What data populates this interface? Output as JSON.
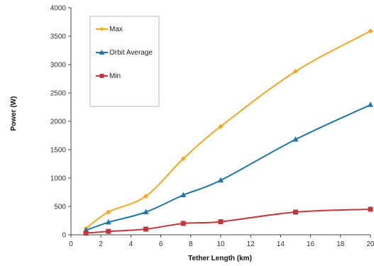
{
  "chart_data": {
    "type": "line",
    "xlabel": "Tether Length (km)",
    "ylabel": "Power (W)",
    "xlim": [
      0,
      20
    ],
    "ylim": [
      0,
      4000
    ],
    "xticks": [
      "0",
      "2",
      "4",
      "6",
      "8",
      "10",
      "12",
      "14",
      "16",
      "18",
      "20"
    ],
    "yticks": [
      "0",
      "500",
      "1000",
      "1500",
      "2000",
      "2500",
      "3000",
      "3500",
      "4000"
    ],
    "grid": false,
    "legend_position": "top-left",
    "series": [
      {
        "name": "Max",
        "color": "#f5a623",
        "marker": "diamond",
        "x": [
          1,
          2.5,
          5,
          7.5,
          10,
          15,
          20
        ],
        "y": [
          110,
          400,
          680,
          1340,
          1910,
          2880,
          3590
        ]
      },
      {
        "name": "Orbit Average",
        "color": "#1f77a8",
        "marker": "triangle",
        "x": [
          1,
          2.5,
          5,
          7.5,
          10,
          15,
          20
        ],
        "y": [
          80,
          220,
          400,
          700,
          960,
          1680,
          2290
        ]
      },
      {
        "name": "Min",
        "color": "#c1373c",
        "marker": "square",
        "x": [
          1,
          2.5,
          5,
          7.5,
          10,
          15,
          20
        ],
        "y": [
          30,
          60,
          100,
          200,
          230,
          400,
          450
        ]
      }
    ]
  }
}
